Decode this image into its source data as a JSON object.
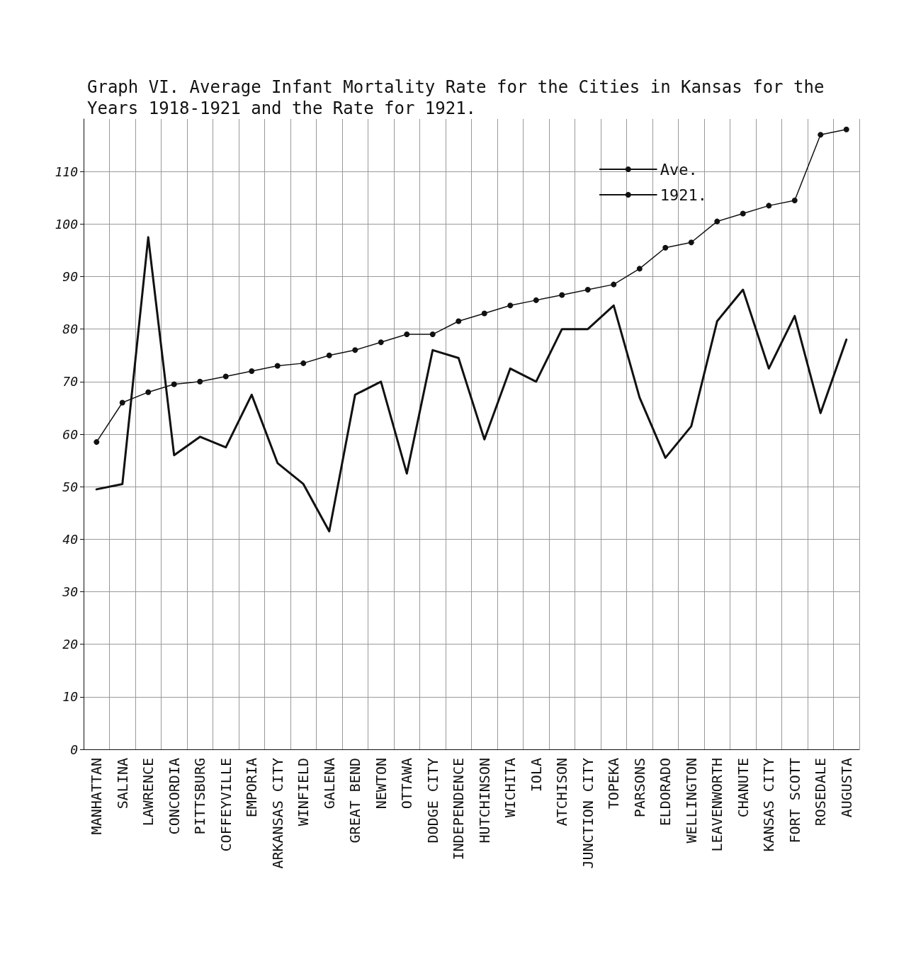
{
  "chart_data": {
    "type": "line",
    "title": "Graph VI. Average Infant Mortality Rate for the Cities in Kansas for the Years 1918-1921 and the Rate for 1921.",
    "categories": [
      "MANHATTAN",
      "SALINA",
      "LAWRENCE",
      "CONCORDIA",
      "PITTSBURG",
      "COFFEYVILLE",
      "EMPORIA",
      "ARKANSAS CITY",
      "WINFIELD",
      "GALENA",
      "GREAT BEND",
      "NEWTON",
      "OTTAWA",
      "DODGE CITY",
      "INDEPENDENCE",
      "HUTCHINSON",
      "WICHITA",
      "IOLA",
      "ATCHISON",
      "JUNCTION CITY",
      "TOPEKA",
      "PARSONS",
      "ELDORADO",
      "WELLINGTON",
      "LEAVENWORTH",
      "CHANUTE",
      "KANSAS CITY",
      "FORT SCOTT",
      "ROSEDALE",
      "AUGUSTA"
    ],
    "series": [
      {
        "name": "Ave.",
        "color": "#111111",
        "marker": "circle",
        "values": [
          58.5,
          66,
          68,
          69.5,
          70,
          71,
          72,
          73,
          73.5,
          75,
          76,
          77.5,
          79,
          79,
          81.5,
          83,
          84.5,
          85.5,
          86.5,
          87.5,
          88.5,
          91.5,
          95.5,
          96.5,
          100.5,
          102,
          103.5,
          104.5,
          117,
          118
        ]
      },
      {
        "name": "1921.",
        "color": "#111111",
        "marker": "none",
        "values": [
          49.5,
          50.5,
          97.5,
          56,
          59.5,
          57.5,
          67.5,
          54.5,
          50.5,
          41.5,
          67.5,
          70,
          52.5,
          76,
          74.5,
          59,
          72.5,
          70,
          80,
          80,
          84.5,
          67,
          55.5,
          61.5,
          81.5,
          87.5,
          72.5,
          82.5,
          64,
          78
        ]
      }
    ],
    "ylim": [
      0,
      120
    ],
    "yticks": [
      0,
      10,
      20,
      30,
      40,
      50,
      60,
      70,
      80,
      90,
      100,
      110
    ],
    "grid": true,
    "legend": "top right",
    "line_style": "solid"
  }
}
